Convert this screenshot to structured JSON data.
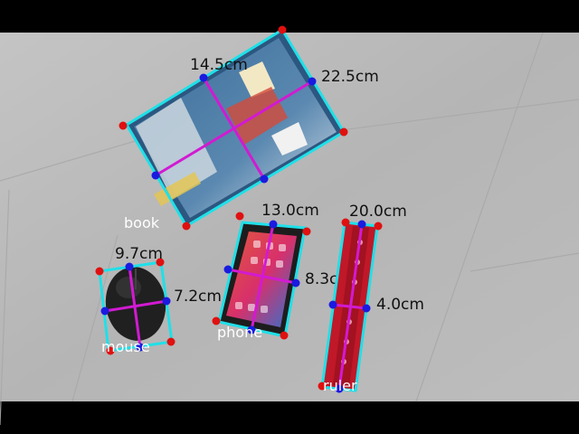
{
  "scene": {
    "colors": {
      "bar": "#000000",
      "floor": "#b9b9b9",
      "tile_line": "#a6a6a6",
      "box_outline": "#1fe0e8",
      "axis_line": "#d21ad2",
      "corner_point": "#e01010",
      "mid_point": "#1a1ae0"
    }
  },
  "objects": [
    {
      "name": "book",
      "label": "book",
      "width_label": "14.5cm",
      "height_label": "22.5cm",
      "icon": "notebook-icon"
    },
    {
      "name": "phone",
      "label": "phone",
      "width_label": "13.0cm",
      "height_label": "8.3cm",
      "icon": "smartphone-icon"
    },
    {
      "name": "ruler",
      "label": "ruler",
      "width_label": "20.0cm",
      "height_label": "4.0cm",
      "icon": "ruler-icon"
    },
    {
      "name": "mouse",
      "label": "mouse",
      "width_label": "9.7cm",
      "height_label": "7.2cm",
      "icon": "computer-mouse-icon"
    }
  ]
}
